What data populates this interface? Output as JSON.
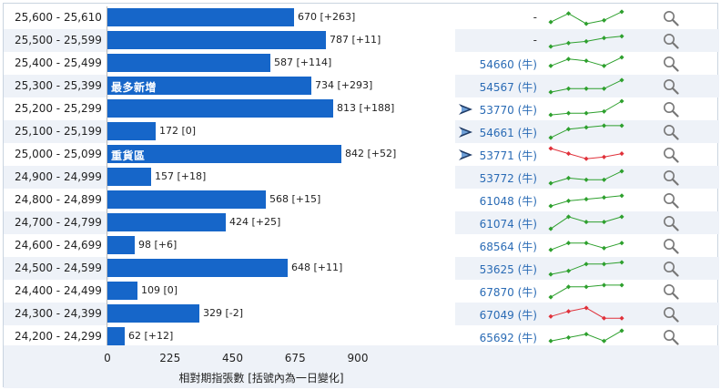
{
  "rows": [
    {
      "range": "25,600 - 25,610",
      "value": 670,
      "label": "670 [+263]",
      "tag": "",
      "code": "-",
      "bull": false,
      "trend": "up",
      "spark": [
        2,
        7,
        1,
        3,
        8
      ]
    },
    {
      "range": "25,500 - 25,599",
      "value": 787,
      "label": "787 [+11]",
      "tag": "",
      "code": "-",
      "bull": false,
      "trend": "up",
      "spark": [
        1,
        3,
        4,
        6,
        7
      ]
    },
    {
      "range": "25,400 - 25,499",
      "value": 587,
      "label": "587 [+114]",
      "tag": "",
      "code": "54660 (牛)",
      "bull": false,
      "trend": "up",
      "spark": [
        3,
        7,
        6,
        3,
        8
      ]
    },
    {
      "range": "25,300 - 25,399",
      "value": 734,
      "label": "734 [+293]",
      "tag": "最多新增",
      "code": "54567 (牛)",
      "bull": false,
      "trend": "up",
      "spark": [
        1,
        3,
        3,
        3,
        8
      ]
    },
    {
      "range": "25,200 - 25,299",
      "value": 813,
      "label": "813 [+188]",
      "tag": "",
      "code": "53770 (牛)",
      "bull": true,
      "trend": "up",
      "spark": [
        1,
        2,
        2,
        3,
        9
      ]
    },
    {
      "range": "25,100 - 25,199",
      "value": 172,
      "label": "172 [0]",
      "tag": "",
      "code": "54661 (牛)",
      "bull": true,
      "trend": "up",
      "spark": [
        1,
        6,
        7,
        8,
        8
      ]
    },
    {
      "range": "25,000 - 25,099",
      "value": 842,
      "label": "842 [+52]",
      "tag": "重貨區",
      "code": "53771 (牛)",
      "bull": true,
      "trend": "down",
      "spark": [
        8,
        5,
        2,
        3,
        5
      ]
    },
    {
      "range": "24,900 - 24,999",
      "value": 157,
      "label": "157 [+18]",
      "tag": "",
      "code": "53772 (牛)",
      "bull": false,
      "trend": "up",
      "spark": [
        1,
        4,
        3,
        3,
        8
      ]
    },
    {
      "range": "24,800 - 24,899",
      "value": 568,
      "label": "568 [+15]",
      "tag": "",
      "code": "61048 (牛)",
      "bull": false,
      "trend": "up",
      "spark": [
        1,
        4,
        5,
        6,
        7
      ]
    },
    {
      "range": "24,700 - 24,799",
      "value": 424,
      "label": "424 [+25]",
      "tag": "",
      "code": "61074 (牛)",
      "bull": false,
      "trend": "up",
      "spark": [
        1,
        8,
        5,
        5,
        8
      ]
    },
    {
      "range": "24,600 - 24,699",
      "value": 98,
      "label": "98 [+6]",
      "tag": "",
      "code": "68564 (牛)",
      "bull": false,
      "trend": "up",
      "spark": [
        2,
        6,
        6,
        3,
        6
      ]
    },
    {
      "range": "24,500 - 24,599",
      "value": 648,
      "label": "648 [+11]",
      "tag": "",
      "code": "53625 (牛)",
      "bull": false,
      "trend": "up",
      "spark": [
        1,
        3,
        7,
        7,
        8
      ]
    },
    {
      "range": "24,400 - 24,499",
      "value": 109,
      "label": "109 [0]",
      "tag": "",
      "code": "67870 (牛)",
      "bull": false,
      "trend": "up",
      "spark": [
        1,
        7,
        7,
        8,
        8
      ]
    },
    {
      "range": "24,300 - 24,399",
      "value": 329,
      "label": "329 [-2]",
      "tag": "",
      "code": "67049 (牛)",
      "bull": false,
      "trend": "down",
      "spark": [
        3,
        6,
        8,
        2,
        2
      ]
    },
    {
      "range": "24,200 - 24,299",
      "value": 62,
      "label": "62 [+12]",
      "tag": "",
      "code": "65692 (牛)",
      "bull": false,
      "trend": "up",
      "spark": [
        2,
        4,
        6,
        2,
        8
      ]
    }
  ],
  "axis": {
    "max": 900,
    "ticks": [
      "0",
      "225",
      "450",
      "675",
      "900"
    ],
    "title": "相對期指張數 [括號內為一日變化]"
  },
  "colors": {
    "bar": "#1666c9",
    "up": "#2ea02e",
    "down": "#e0313a",
    "code": "#2a6bb5"
  },
  "icons": {
    "search": "search-icon",
    "bull": "bull-flag-icon"
  }
}
